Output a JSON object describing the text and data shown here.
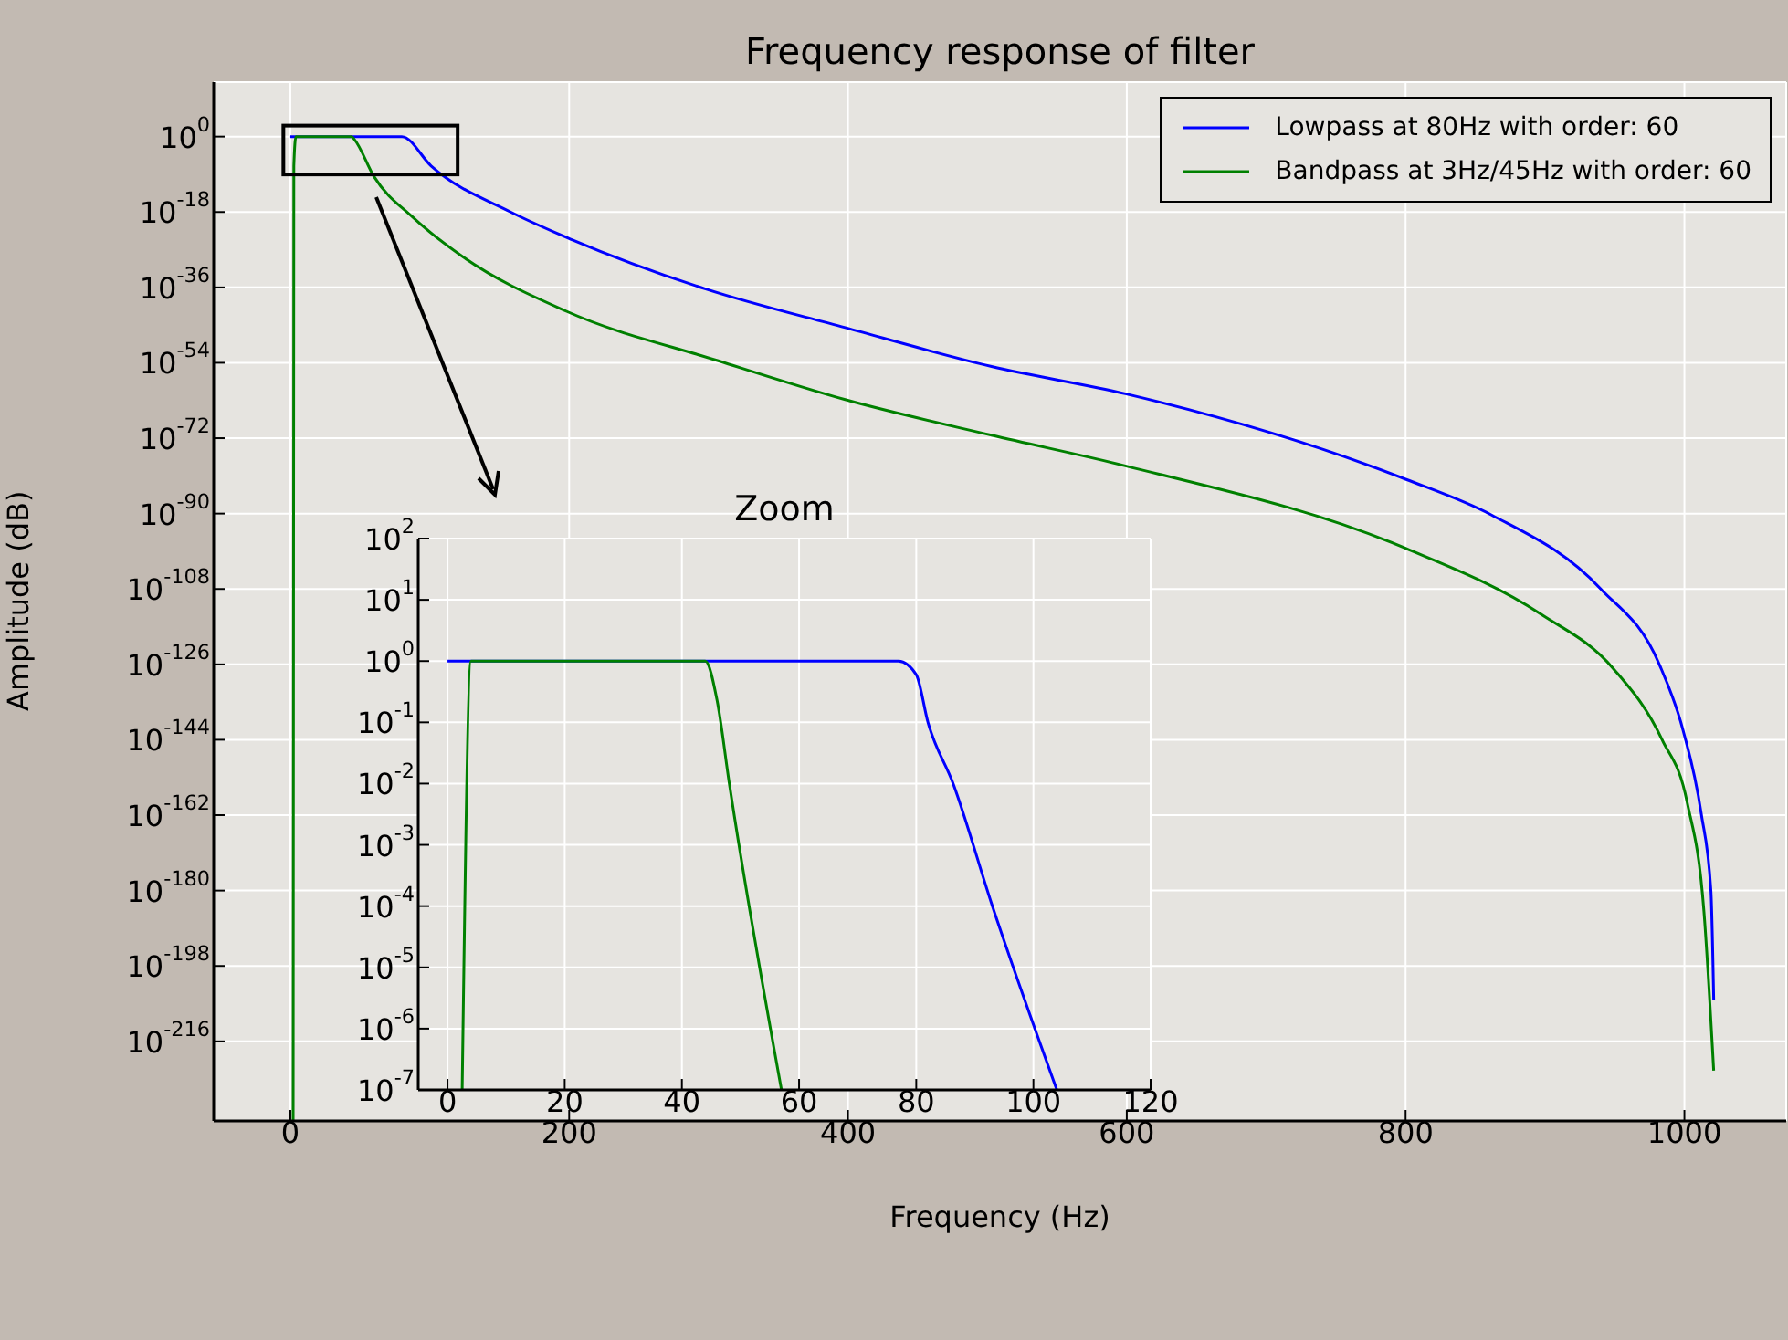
{
  "chart_data": [
    {
      "type": "line",
      "title": "Frequency response of filter",
      "xlabel": "Frequency (Hz)",
      "ylabel": "Amplitude (dB)",
      "log": true,
      "grid": true,
      "legend": "top right",
      "xlim": [
        -55,
        1073
      ],
      "xticks": [
        0,
        200,
        400,
        600,
        800,
        1000
      ],
      "ylim": [
        1e-235,
        10000000000000.0
      ],
      "yticks": [
        {
          "value": 1,
          "label": "10$^{0}$"
        },
        {
          "value": 1e-18,
          "label": "10$^{-18}$"
        },
        {
          "value": 1e-36,
          "label": "10$^{-36}$"
        },
        {
          "value": 1e-54,
          "label": "10$^{-54}$"
        },
        {
          "value": 1e-72,
          "label": "10$^{-72}$"
        },
        {
          "value": 1e-90,
          "label": "10$^{-90}$"
        },
        {
          "value": 1e-108,
          "label": "10$^{-108}$"
        },
        {
          "value": 1e-126,
          "label": "10$^{-126}$"
        },
        {
          "value": 1e-144,
          "label": "10$^{-144}$"
        },
        {
          "value": 1e-162,
          "label": "10$^{-162}$"
        },
        {
          "value": 1e-180,
          "label": "10$^{-180}$"
        },
        {
          "value": 1e-198,
          "label": "10$^{-198}$"
        },
        {
          "value": 1e-216,
          "label": "10$^{-216}$"
        }
      ],
      "series": [
        {
          "name": "Lowpass at 80Hz with order: 60",
          "color": "#0000ff",
          "x": [
            0,
            80,
            101,
            158,
            202,
            298,
            398,
            503,
            599,
            800,
            862,
            940,
            982,
            999,
            1012,
            1019,
            1021
          ],
          "values": [
            1,
            1,
            1e-07,
            1e-18,
            2.5e-25,
            4e-37,
            2.5e-46,
            1.3e-55,
            4e-62,
            1.6e-82,
            4e-91,
            1e-108,
            1e-126,
            2e-142,
            3e-162,
            1e-180,
            1e-206
          ]
        },
        {
          "name": "Bandpass at 3Hz/45Hz with order: 60",
          "color": "#008000",
          "x": [
            2,
            2.5,
            4,
            44,
            46,
            60,
            88,
            123,
            198,
            307,
            398,
            503,
            599,
            800,
            897,
            949,
            984,
            1002,
            1014,
            1021
          ],
          "values": [
            1e-235,
            1e-07,
            1,
            1,
            0.2,
            3e-10,
            5e-20,
            3e-29,
            2e-42,
            3e-54,
            1.6e-63,
            5e-72,
            2.5e-79,
            5e-99,
            1e-114,
            1e-127,
            1e-144,
            1e-159,
            1e-185,
            1e-223
          ]
        }
      ]
    },
    {
      "type": "line",
      "title": "Zoom",
      "log": true,
      "grid": true,
      "xlim": [
        -5,
        120
      ],
      "xticks": [
        0,
        20,
        40,
        60,
        80,
        100,
        120
      ],
      "ylim": [
        1e-07,
        100
      ],
      "yticks": [
        {
          "value": 100,
          "label": "10$^{2}$"
        },
        {
          "value": 10,
          "label": "10$^{1}$"
        },
        {
          "value": 1,
          "label": "10$^{0}$"
        },
        {
          "value": 0.1,
          "label": "10$^{-1}$"
        },
        {
          "value": 0.01,
          "label": "10$^{-2}$"
        },
        {
          "value": 0.001,
          "label": "10$^{-3}$"
        },
        {
          "value": 0.0001,
          "label": "10$^{-4}$"
        },
        {
          "value": 1e-05,
          "label": "10$^{-5}$"
        },
        {
          "value": 1e-06,
          "label": "10$^{-6}$"
        },
        {
          "value": 1e-07,
          "label": "10$^{-7}$"
        }
      ],
      "series": [
        {
          "color": "#0000ff",
          "x": [
            0,
            77,
            80,
            82,
            86.3,
            93,
            104
          ],
          "values": [
            1,
            1,
            0.6,
            0.1,
            0.01,
            0.0001,
            1e-07
          ]
        },
        {
          "color": "#008000",
          "x": [
            2.5,
            4,
            44,
            46,
            48.1,
            57
          ],
          "values": [
            1e-07,
            1,
            1,
            0.23,
            0.01,
            1e-07
          ]
        }
      ]
    }
  ]
}
